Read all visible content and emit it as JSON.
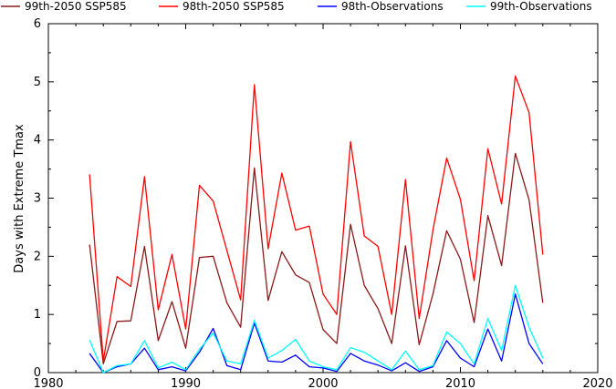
{
  "chart_data": {
    "type": "line",
    "xlabel": "",
    "ylabel": "Days with Extreme Tmax",
    "xlim": [
      1980,
      2020
    ],
    "ylim": [
      0,
      6
    ],
    "xticks": [
      1980,
      1990,
      2000,
      2010,
      2020
    ],
    "yticks": [
      0,
      1,
      2,
      3,
      4,
      5,
      6
    ],
    "grid": false,
    "legend_position": "top",
    "x": [
      1983,
      1984,
      1985,
      1986,
      1987,
      1988,
      1989,
      1990,
      1991,
      1992,
      1993,
      1994,
      1995,
      1996,
      1997,
      1998,
      1999,
      2000,
      2001,
      2002,
      2003,
      2004,
      2005,
      2006,
      2007,
      2008,
      2009,
      2010,
      2011,
      2012,
      2013,
      2014,
      2015,
      2016
    ],
    "series": [
      {
        "name": "99th-2050 SSP585",
        "color": "#8b1a1a",
        "values": [
          2.2,
          0.15,
          0.88,
          0.89,
          2.17,
          0.55,
          1.22,
          0.42,
          1.98,
          2.0,
          1.2,
          0.78,
          3.52,
          1.24,
          2.08,
          1.68,
          1.55,
          0.74,
          0.5,
          2.55,
          1.5,
          1.1,
          0.5,
          2.18,
          0.48,
          1.35,
          2.44,
          1.95,
          0.86,
          2.7,
          1.84,
          3.77,
          2.97,
          1.2
        ]
      },
      {
        "name": "98th-2050 SSP585",
        "color": "#ff0000",
        "values": [
          3.41,
          0.2,
          1.65,
          1.48,
          3.37,
          1.08,
          2.03,
          0.75,
          3.22,
          2.95,
          2.1,
          1.25,
          4.95,
          2.13,
          3.43,
          2.45,
          2.52,
          1.35,
          1.0,
          3.97,
          2.35,
          2.17,
          1.0,
          3.32,
          0.93,
          2.45,
          3.69,
          2.98,
          1.58,
          3.85,
          2.9,
          5.1,
          4.47,
          2.03
        ]
      },
      {
        "name": "98th-Observations",
        "color": "#0000ff",
        "values": [
          0.33,
          0.0,
          0.1,
          0.15,
          0.42,
          0.05,
          0.1,
          0.03,
          0.35,
          0.76,
          0.12,
          0.05,
          0.85,
          0.2,
          0.18,
          0.3,
          0.1,
          0.08,
          0.02,
          0.33,
          0.2,
          0.13,
          0.03,
          0.17,
          0.02,
          0.1,
          0.55,
          0.25,
          0.1,
          0.75,
          0.2,
          1.35,
          0.5,
          0.15
        ]
      },
      {
        "name": "99th-Observations",
        "color": "#00ffff",
        "values": [
          0.56,
          0.0,
          0.12,
          0.15,
          0.55,
          0.08,
          0.18,
          0.05,
          0.4,
          0.68,
          0.2,
          0.15,
          0.9,
          0.25,
          0.38,
          0.57,
          0.2,
          0.1,
          0.05,
          0.43,
          0.35,
          0.2,
          0.05,
          0.37,
          0.05,
          0.12,
          0.7,
          0.5,
          0.15,
          0.93,
          0.38,
          1.5,
          0.78,
          0.25
        ]
      }
    ]
  }
}
